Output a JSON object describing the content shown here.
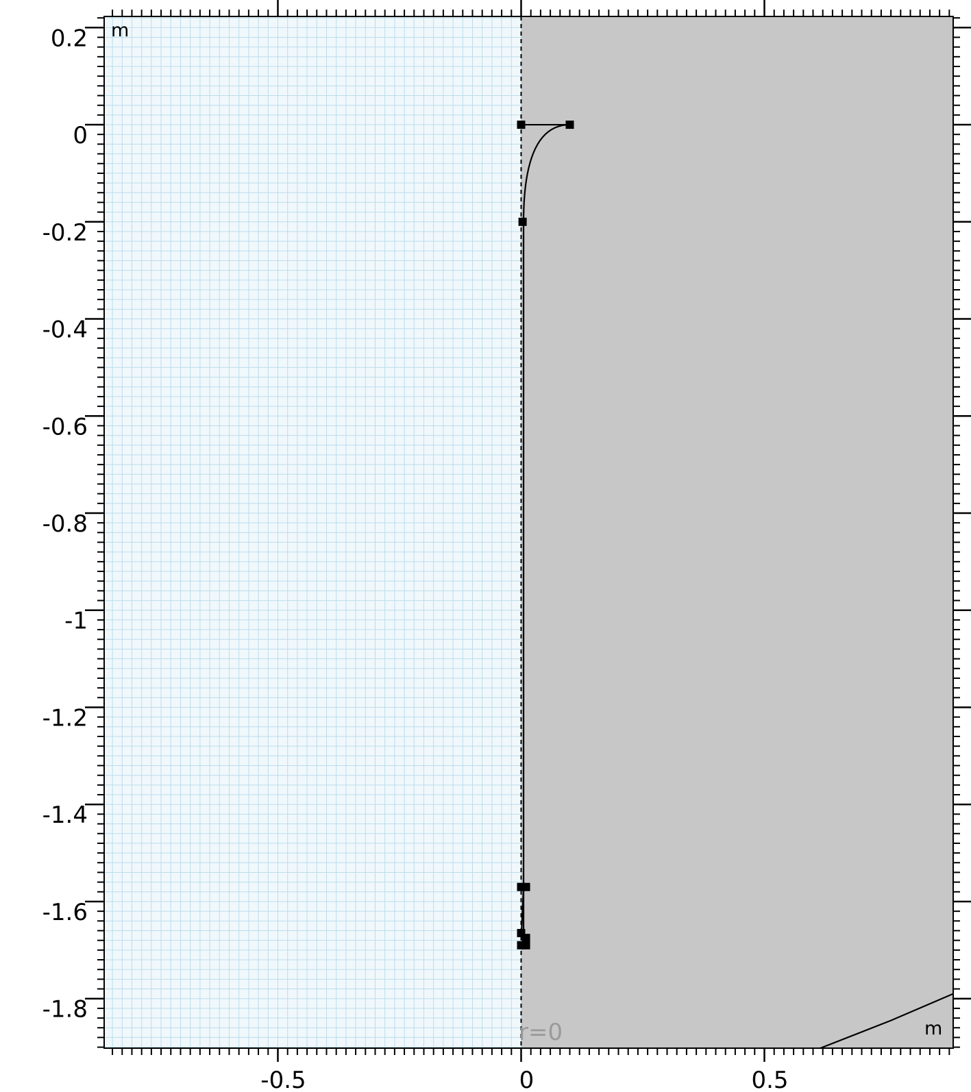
{
  "view": {
    "unit_label_top_left": "m",
    "unit_label_bottom_right": "m",
    "axis_annotation": "r=0",
    "colors": {
      "background": "#ffffff",
      "grid_region_fill": "#f0f8fc",
      "grid_line": "#bcdceb",
      "domain_fill": "#c7c7c7",
      "frame": "#000000",
      "axis_annotation": "#9a9a9a"
    }
  },
  "chart_data": {
    "type": "scatter",
    "title": "",
    "xlabel": "",
    "ylabel": "",
    "xlim": [
      -0.857,
      0.888
    ],
    "ylim": [
      -1.902,
      0.223
    ],
    "x_ticks": [
      {
        "value": -0.5,
        "label": "-0.5"
      },
      {
        "value": 0,
        "label": "0"
      },
      {
        "value": 0.5,
        "label": "0.5"
      }
    ],
    "y_ticks": [
      {
        "value": 0.2,
        "label": "0.2"
      },
      {
        "value": 0,
        "label": "0"
      },
      {
        "value": -0.2,
        "label": "-0.2"
      },
      {
        "value": -0.4,
        "label": "-0.4"
      },
      {
        "value": -0.6,
        "label": "-0.6"
      },
      {
        "value": -0.8,
        "label": "-0.8"
      },
      {
        "value": -1,
        "label": "-1"
      },
      {
        "value": -1.2,
        "label": "-1.2"
      },
      {
        "value": -1.4,
        "label": "-1.4"
      },
      {
        "value": -1.6,
        "label": "-1.6"
      },
      {
        "value": -1.8,
        "label": "-1.8"
      }
    ],
    "symmetry_axis_r": 0,
    "grid": true,
    "domain": {
      "x_range": [
        0,
        0.888
      ],
      "y_range": [
        -1.902,
        0.223
      ]
    },
    "edges": [
      {
        "kind": "line",
        "points": [
          [
            0,
            0
          ],
          [
            0.1,
            0
          ]
        ]
      },
      {
        "kind": "quad",
        "points": [
          [
            0.1,
            0
          ],
          [
            0.005,
            0
          ],
          [
            0.005,
            -0.2
          ]
        ]
      },
      {
        "kind": "line",
        "points": [
          [
            0.005,
            -0.2
          ],
          [
            0.005,
            -1.57
          ]
        ]
      },
      {
        "kind": "line",
        "points": [
          [
            0.005,
            -1.57
          ],
          [
            0,
            -1.68
          ]
        ]
      },
      {
        "kind": "line",
        "points": [
          [
            0.005,
            -1.57
          ],
          [
            0.005,
            -1.68
          ]
        ]
      },
      {
        "kind": "line",
        "points": [
          [
            0.615,
            -1.902
          ],
          [
            0.76,
            -1.845
          ],
          [
            0.888,
            -1.79
          ]
        ]
      }
    ],
    "vertices": [
      [
        0,
        0
      ],
      [
        0.1,
        0
      ],
      [
        0.003,
        -0.2
      ],
      [
        0,
        -1.57
      ],
      [
        0.01,
        -1.57
      ],
      [
        0,
        -1.665
      ],
      [
        0.01,
        -1.675
      ],
      [
        0,
        -1.69
      ],
      [
        0.01,
        -1.69
      ]
    ]
  }
}
